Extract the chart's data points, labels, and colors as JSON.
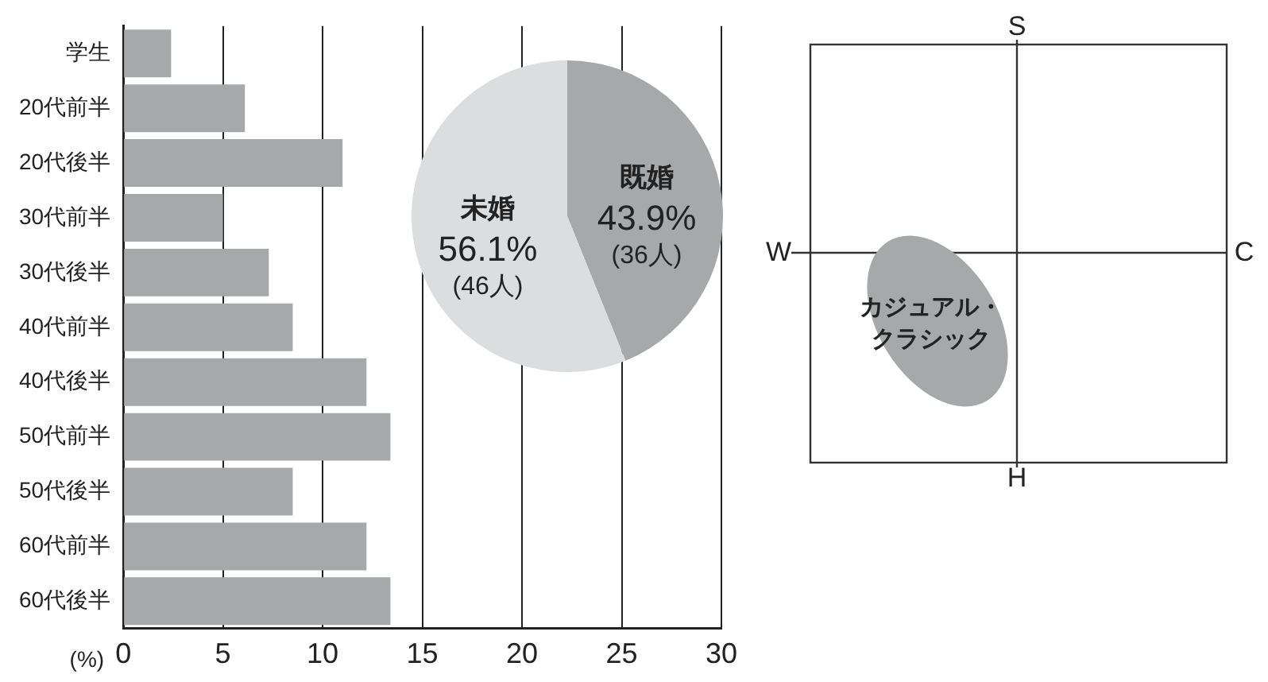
{
  "chart_data": [
    {
      "type": "bar",
      "orientation": "horizontal",
      "categories": [
        "学生",
        "20代前半",
        "20代後半",
        "30代前半",
        "30代後半",
        "40代前半",
        "40代後半",
        "50代前半",
        "50代後半",
        "60代前半",
        "60代後半"
      ],
      "values": [
        2.4,
        6.1,
        11.0,
        5.0,
        7.3,
        8.5,
        12.2,
        13.4,
        8.5,
        12.2,
        13.4
      ],
      "color": "#a7a8aa",
      "xlim": [
        0,
        30
      ],
      "xticks": [
        0,
        5,
        10,
        15,
        20,
        25,
        30
      ],
      "xlabel": "(%)",
      "grid": "x",
      "legend": false
    },
    {
      "type": "pie",
      "categories": [
        "既婚",
        "未婚"
      ],
      "values": [
        43.9,
        56.1
      ],
      "colors": [
        "#a7a8aa",
        "#dcdddf"
      ],
      "value_labels": [
        "43.9%",
        "56.1%"
      ],
      "annotations": [
        "(36人)",
        "(46人)"
      ],
      "legend": false
    },
    {
      "type": "other",
      "annotations": [
        "S",
        "C",
        "H",
        "W",
        "カジュアル・クラシック"
      ]
    }
  ]
}
